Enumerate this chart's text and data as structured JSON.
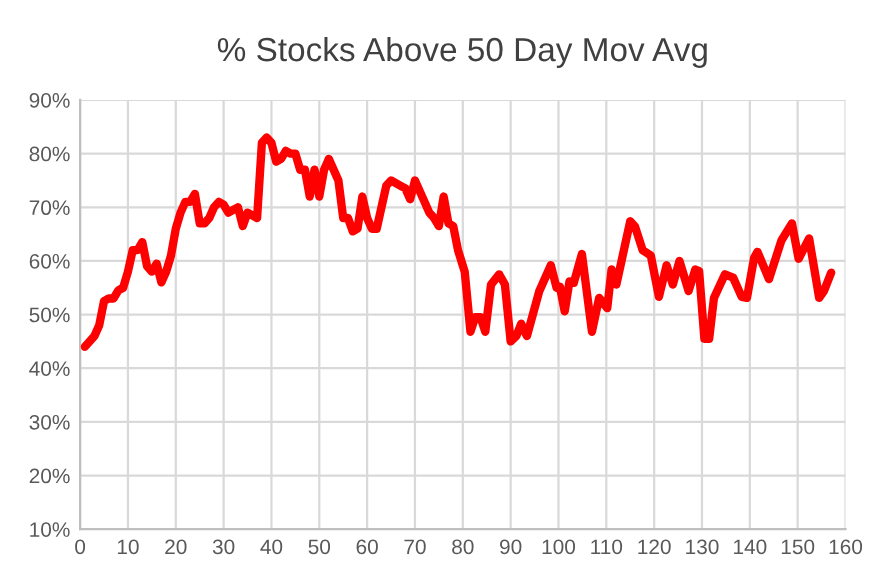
{
  "chart_data": {
    "type": "line",
    "title": "% Stocks Above 50 Day Mov Avg",
    "x": [
      1,
      3,
      4,
      5,
      6,
      7,
      8,
      9,
      10,
      11,
      12,
      13,
      14,
      15,
      16,
      17,
      18,
      19,
      20,
      21,
      22,
      23,
      24,
      25,
      26,
      27,
      28,
      29,
      30,
      31,
      32,
      33,
      34,
      35,
      36,
      37,
      38,
      39,
      40,
      41,
      42,
      43,
      44,
      45,
      46,
      47,
      48,
      49,
      50,
      51,
      52,
      53,
      54,
      55,
      56,
      57,
      58,
      59,
      60,
      61,
      62,
      63,
      64,
      65,
      66,
      67,
      68,
      69,
      70,
      71,
      72,
      73,
      74,
      75,
      76,
      77,
      78,
      79,
      80.4,
      81.6,
      82.6,
      83.7,
      84.7,
      85.9,
      87.6,
      88.8,
      90,
      91.2,
      92.2,
      93.4,
      96,
      98.4,
      99.6,
      100.3,
      101.3,
      102.3,
      103.2,
      104.9,
      107,
      108.5,
      110.2,
      111.1,
      112.1,
      115,
      116,
      117.6,
      119.3,
      121,
      122.6,
      123.9,
      125.3,
      127.2,
      128.6,
      129.4,
      130.5,
      131.5,
      132.5,
      134.8,
      136.5,
      138.3,
      139.4,
      140.9,
      141.6,
      144,
      146.6,
      148.8,
      150.2,
      152.4,
      154.5,
      155.5,
      157
    ],
    "series": [
      {
        "color": "#ff0000",
        "values": [
          44,
          46,
          48,
          52.5,
          53,
          53,
          54.5,
          55,
          58,
          62,
          62,
          63.5,
          59,
          58,
          59.5,
          56,
          58,
          61,
          66,
          69,
          71,
          71,
          72.5,
          67,
          67,
          68,
          70,
          71,
          70.5,
          69,
          69.5,
          70,
          66.5,
          69,
          68.5,
          68,
          82,
          83,
          82,
          78.5,
          79,
          80.5,
          80,
          80,
          77,
          77,
          72,
          77,
          72,
          77,
          79,
          77,
          75,
          68,
          68,
          65.5,
          66,
          72,
          68,
          66,
          66,
          70,
          74,
          75,
          74.5,
          74,
          73.5,
          71.5,
          75,
          73,
          71,
          69,
          68,
          66.5,
          72,
          67,
          66.5,
          62,
          58,
          46.8,
          49.5,
          49.5,
          46.8,
          55.6,
          57.5,
          55.6,
          45,
          46,
          48.3,
          46,
          54.4,
          59.2,
          55,
          55.2,
          50.6,
          56.2,
          55.9,
          61.3,
          46.8,
          53.1,
          51.2,
          58.4,
          55.6,
          67.4,
          66.4,
          62,
          61,
          53.3,
          59.2,
          55.6,
          60,
          54.4,
          58.4,
          58.1,
          45.5,
          45.5,
          53.1,
          57.5,
          56.9,
          53.3,
          53.1,
          60.6,
          61.7,
          56.6,
          63.8,
          67,
          60.4,
          64.2,
          53.1,
          54.4,
          57.8
        ]
      }
    ],
    "xlim": [
      0,
      160
    ],
    "xticks": [
      0,
      10,
      20,
      30,
      40,
      50,
      60,
      70,
      80,
      90,
      100,
      110,
      120,
      130,
      140,
      150,
      160
    ],
    "ylim": [
      10,
      90
    ],
    "yticks": [
      {
        "value": 10,
        "label": "10%"
      },
      {
        "value": 20,
        "label": "20%"
      },
      {
        "value": 30,
        "label": "30%"
      },
      {
        "value": 40,
        "label": "40%"
      },
      {
        "value": 50,
        "label": "50%"
      },
      {
        "value": 60,
        "label": "60%"
      },
      {
        "value": 70,
        "label": "70%"
      },
      {
        "value": 80,
        "label": "80%"
      },
      {
        "value": 90,
        "label": "90%"
      }
    ],
    "grid": true,
    "marker": "none",
    "line_style": "solid"
  }
}
